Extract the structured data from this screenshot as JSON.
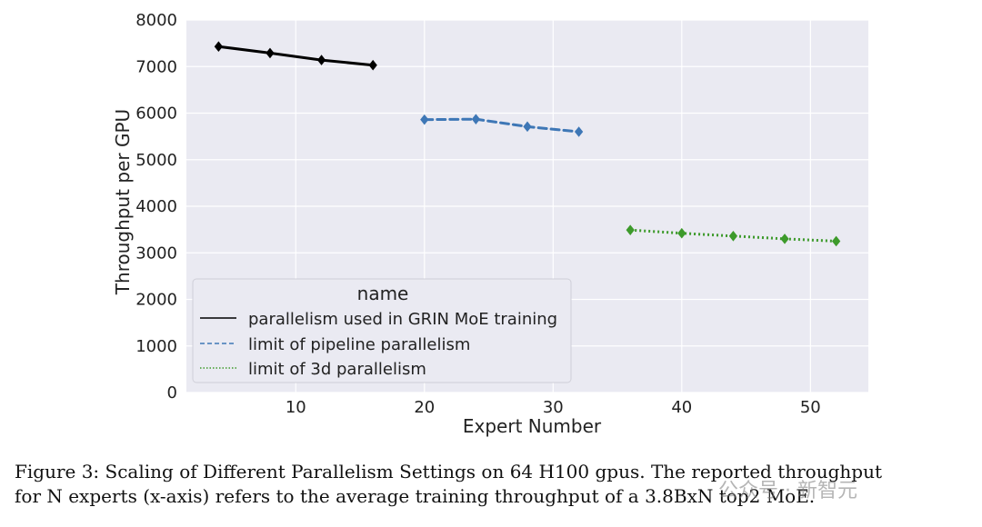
{
  "chart_data": {
    "type": "line",
    "xlabel": "Expert Number",
    "ylabel": "Throughput per GPU",
    "xlim": [
      1.5,
      54.5
    ],
    "ylim": [
      0,
      8000
    ],
    "xticks": [
      10,
      20,
      30,
      40,
      50
    ],
    "yticks": [
      0,
      1000,
      2000,
      3000,
      4000,
      5000,
      6000,
      7000,
      8000
    ],
    "grid": true,
    "legend": {
      "title": "name",
      "placement": "lower-left"
    },
    "series": [
      {
        "name": "parallelism used in GRIN MoE training",
        "style": "solid",
        "color": "#000000",
        "x": [
          4,
          8,
          12,
          16
        ],
        "y": [
          7430,
          7290,
          7140,
          7030
        ]
      },
      {
        "name": "limit of pipeline parallelism",
        "style": "dashed",
        "color": "#3e77b6",
        "x": [
          20,
          24,
          28,
          32
        ],
        "y": [
          5860,
          5870,
          5710,
          5600
        ]
      },
      {
        "name": "limit of 3d parallelism",
        "style": "dotted",
        "color": "#3d9a2b",
        "x": [
          36,
          40,
          44,
          48,
          52
        ],
        "y": [
          3490,
          3420,
          3360,
          3300,
          3250
        ]
      }
    ]
  },
  "caption": {
    "line1": "Figure 3: Scaling of Different Parallelism Settings on 64 H100 gpus. The reported throughput",
    "line2": "for N experts (x-axis) refers to the average training throughput of a 3.8BxN top2 MoE."
  },
  "watermark": "公众号 · 新智元"
}
